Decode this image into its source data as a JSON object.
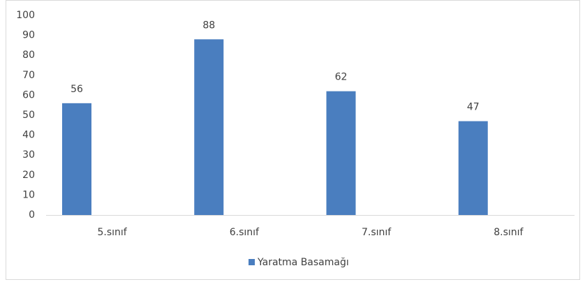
{
  "chart_data": {
    "type": "bar",
    "categories": [
      "5.sınıf",
      "6.sınıf",
      "7.sınıf",
      "8.sınıf"
    ],
    "series": [
      {
        "name": "Yaratma Basamağı",
        "color": "#4a7ebf",
        "values": [
          56,
          88,
          62,
          47
        ]
      }
    ],
    "ylim": [
      0,
      100
    ],
    "yticks": [
      0,
      10,
      20,
      30,
      40,
      50,
      60,
      70,
      80,
      90,
      100
    ],
    "grid": false,
    "legend": "bottom"
  }
}
